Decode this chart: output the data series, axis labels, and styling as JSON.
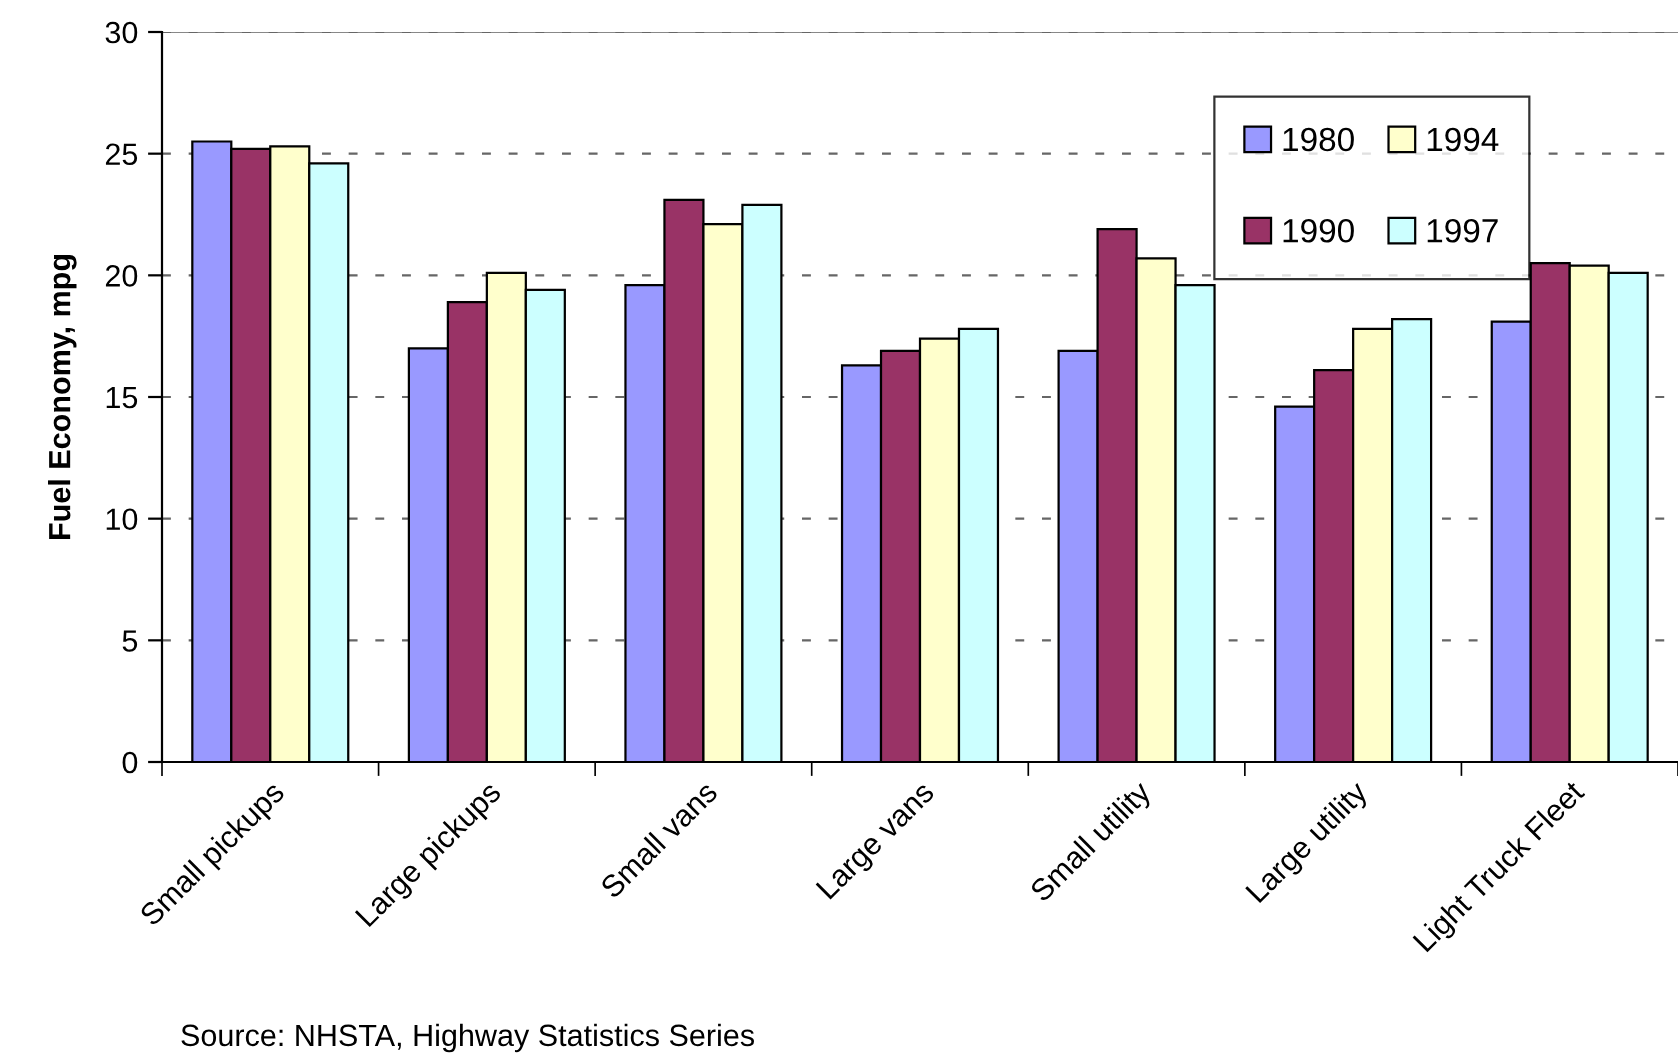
{
  "chart_data": {
    "type": "bar",
    "ylabel": "Fuel Economy, mpg",
    "categories": [
      "Small pickups",
      "Large pickups",
      "Small vans",
      "Large vans",
      "Small utility",
      "Large utility",
      "Light Truck Fleet"
    ],
    "series": [
      {
        "name": "1980",
        "color": "#9999ff",
        "values": [
          25.5,
          17.0,
          19.6,
          16.3,
          16.9,
          14.6,
          18.1
        ]
      },
      {
        "name": "1990",
        "color": "#993366",
        "values": [
          25.2,
          18.9,
          23.1,
          16.9,
          21.9,
          16.1,
          20.5
        ]
      },
      {
        "name": "1994",
        "color": "#ffffcc",
        "values": [
          25.3,
          20.1,
          22.1,
          17.4,
          20.7,
          17.8,
          20.4
        ]
      },
      {
        "name": "1997",
        "color": "#ccffff",
        "values": [
          24.6,
          19.4,
          22.9,
          17.8,
          19.6,
          18.2,
          20.1
        ]
      }
    ],
    "ylim": [
      0,
      30
    ],
    "yticks": [
      0,
      5,
      10,
      15,
      20,
      25,
      30
    ],
    "grid": "y",
    "legend": "top right",
    "annotations": [
      "Source: NHSTA, Highway Statistics Series"
    ]
  }
}
